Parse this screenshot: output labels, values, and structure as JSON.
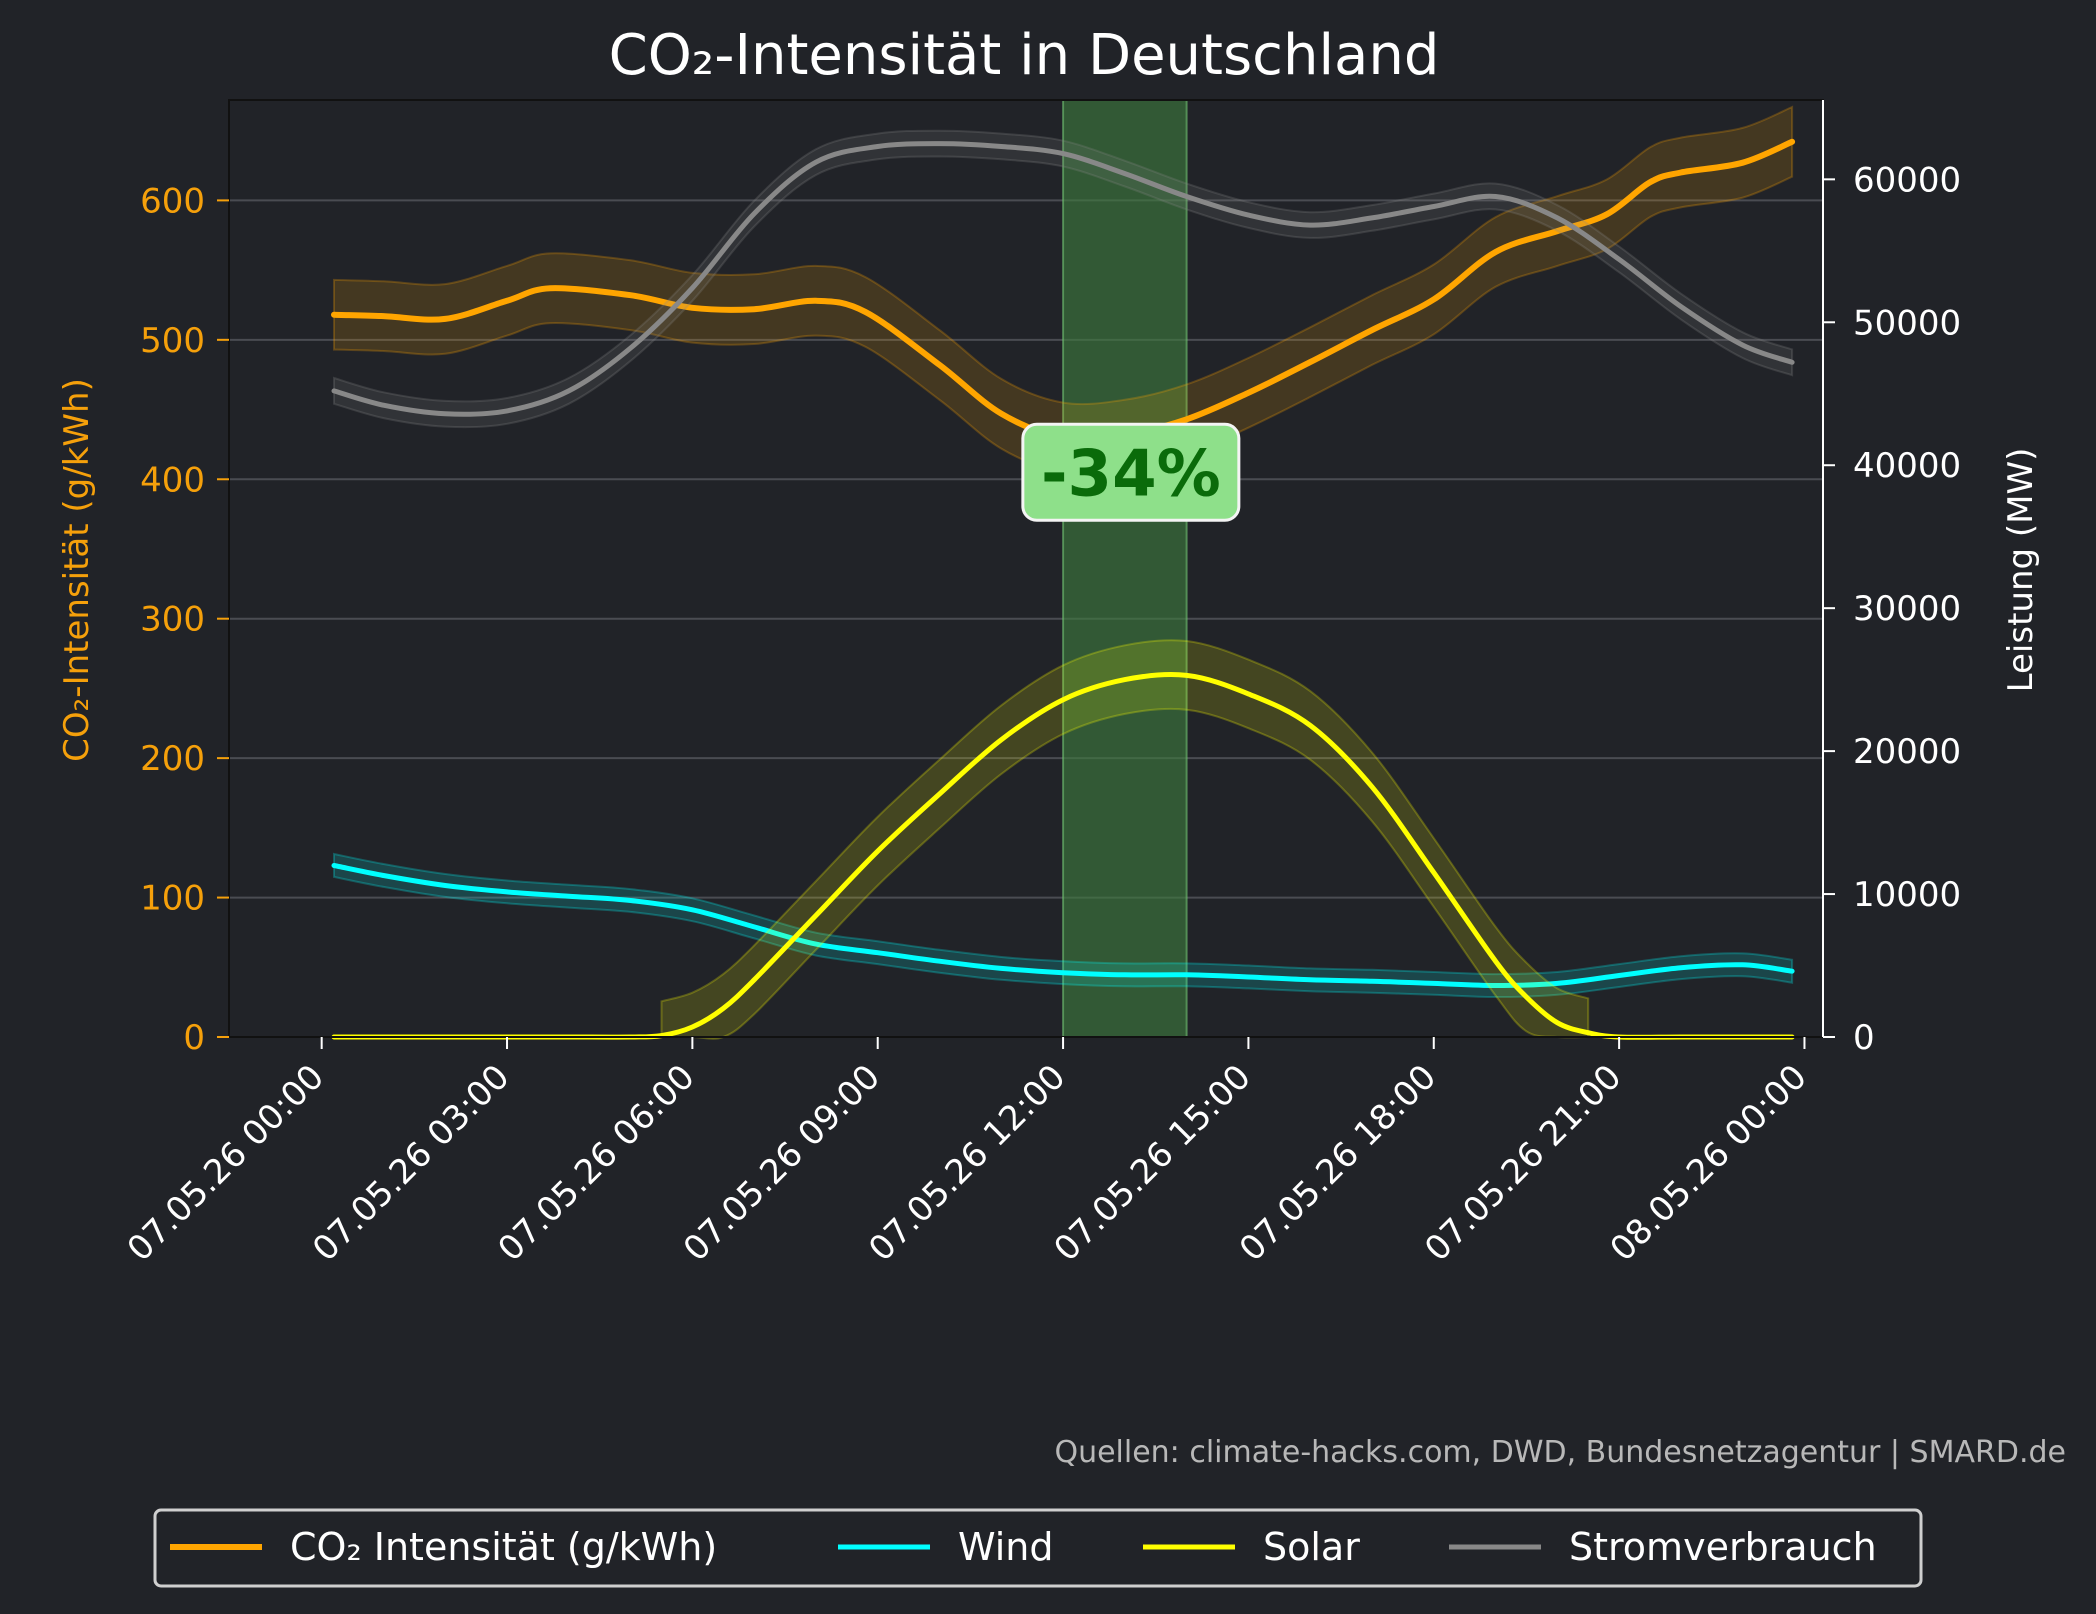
{
  "chart_data": {
    "type": "line",
    "title": "CO₂-Intensität in Deutschland",
    "ylabel_left": "CO₂-Intensität (g/kWh)",
    "ylabel_right": "Leistung (MW)",
    "ylim_left": [
      0,
      672
    ],
    "ylim_right": [
      0,
      65550
    ],
    "yticks_left": [
      0,
      100,
      200,
      300,
      400,
      500,
      600
    ],
    "yticks_right": [
      0,
      10000,
      20000,
      30000,
      40000,
      50000,
      60000
    ],
    "xlim_hours": [
      -1.5,
      24.3
    ],
    "xticks": [
      {
        "hour": 0,
        "label": "07.05.26 00:00"
      },
      {
        "hour": 3,
        "label": "07.05.26 03:00"
      },
      {
        "hour": 6,
        "label": "07.05.26 06:00"
      },
      {
        "hour": 9,
        "label": "07.05.26 09:00"
      },
      {
        "hour": 12,
        "label": "07.05.26 12:00"
      },
      {
        "hour": 15,
        "label": "07.05.26 15:00"
      },
      {
        "hour": 18,
        "label": "07.05.26 18:00"
      },
      {
        "hour": 21,
        "label": "07.05.26 21:00"
      },
      {
        "hour": 24,
        "label": "08.05.26 00:00"
      }
    ],
    "highlight": {
      "start_hour": 12,
      "end_hour": 14,
      "label": "-34%",
      "label_y": 405
    },
    "grid": true,
    "legend_position": "bottom",
    "source": "Quellen: climate-hacks.com, DWD, Bundesnetzagentur | SMARD.de",
    "series": [
      {
        "name": "CO₂ Intensität (g/kWh)",
        "axis": "left",
        "color": "#ffa500",
        "band": 25,
        "x": [
          0.2,
          1,
          2,
          3,
          3.7,
          5,
          6,
          7,
          8,
          8.8,
          10,
          11,
          12,
          13,
          14,
          15,
          16,
          17,
          18,
          19,
          20,
          20.8,
          21.5,
          22,
          23,
          23.8
        ],
        "y": [
          518,
          517,
          515,
          528,
          537,
          532,
          523,
          522,
          528,
          520,
          482,
          447,
          430,
          432,
          443,
          462,
          484,
          507,
          529,
          563,
          578,
          590,
          613,
          620,
          627,
          642
        ]
      },
      {
        "name": "Wind",
        "axis": "right",
        "color": "#00ffff",
        "band": 800,
        "x": [
          0.2,
          1,
          2,
          3,
          4,
          5,
          6,
          7,
          8,
          9,
          10,
          11,
          12,
          13,
          14,
          15,
          16,
          17,
          18,
          19,
          20,
          21,
          22,
          23,
          23.8
        ],
        "y": [
          12000,
          11300,
          10600,
          10150,
          9850,
          9550,
          8900,
          7700,
          6500,
          5900,
          5300,
          4800,
          4500,
          4350,
          4350,
          4200,
          4000,
          3900,
          3750,
          3600,
          3750,
          4300,
          4850,
          5050,
          4600
        ]
      },
      {
        "name": "Solar",
        "axis": "right",
        "color": "#ffff00",
        "band": 2400,
        "x": [
          0.2,
          1,
          2,
          3,
          4,
          5,
          5.5,
          6,
          6.5,
          7,
          8,
          9,
          10,
          11,
          12,
          13,
          14,
          15,
          16,
          17,
          18,
          19,
          19.5,
          20,
          20.5,
          21,
          22,
          23,
          23.8
        ],
        "y": [
          0,
          0,
          0,
          0,
          0,
          0,
          100,
          700,
          2000,
          4000,
          8500,
          13000,
          17000,
          20800,
          23600,
          25000,
          25300,
          24000,
          21800,
          17500,
          11500,
          5300,
          2800,
          1000,
          300,
          0,
          0,
          0,
          0
        ],
        "band_x": [
          5.5,
          20.5
        ]
      },
      {
        "name": "Stromverbrauch",
        "axis": "right",
        "color": "#888888",
        "band": 900,
        "x": [
          0.2,
          1,
          2,
          3,
          4,
          5,
          6,
          7,
          8,
          9,
          10,
          11,
          12,
          13,
          14,
          15,
          16,
          17,
          18,
          19,
          20,
          21,
          22,
          23,
          23.8
        ],
        "y": [
          45200,
          44200,
          43600,
          43800,
          45200,
          48200,
          52400,
          57600,
          61200,
          62300,
          62500,
          62300,
          61800,
          60400,
          58800,
          57500,
          56800,
          57300,
          58100,
          58800,
          57300,
          54400,
          51100,
          48400,
          47200
        ]
      }
    ]
  }
}
